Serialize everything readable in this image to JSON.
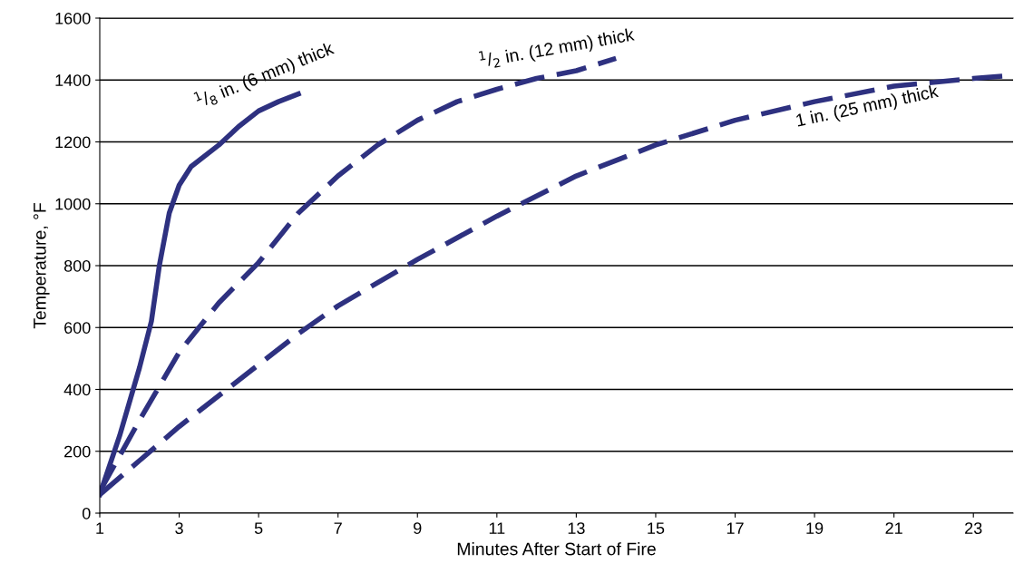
{
  "chart_data": {
    "type": "line",
    "xlabel": "Minutes After Start of Fire",
    "ylabel": "Temperature, °F",
    "xlim": [
      1,
      24
    ],
    "xticks": [
      1,
      3,
      5,
      7,
      9,
      11,
      13,
      15,
      17,
      19,
      21,
      23
    ],
    "ylim": [
      0,
      1600
    ],
    "yticks": [
      0,
      200,
      400,
      600,
      800,
      1000,
      1200,
      1400,
      1600
    ],
    "grid": "y",
    "legend": false,
    "marker": "none",
    "series": [
      {
        "color": "#2e3180",
        "line_style": "solid",
        "x": [
          1,
          1.5,
          2,
          2.3,
          2.5,
          2.75,
          3,
          3.3,
          4,
          4.5,
          5,
          5.5,
          6
        ],
        "values": [
          60,
          250,
          470,
          620,
          800,
          970,
          1060,
          1120,
          1190,
          1250,
          1300,
          1330,
          1355
        ]
      },
      {
        "color": "#2e3180",
        "line_style": "dashed",
        "x": [
          1,
          2,
          3,
          4,
          5,
          6,
          7,
          8,
          9,
          10,
          11,
          12,
          13,
          14
        ],
        "values": [
          70,
          300,
          520,
          680,
          810,
          970,
          1090,
          1190,
          1270,
          1330,
          1370,
          1405,
          1430,
          1470
        ]
      },
      {
        "color": "#2e3180",
        "line_style": "dashed",
        "x": [
          1,
          2,
          3,
          5,
          6,
          7,
          9,
          11,
          13,
          15,
          17,
          19,
          21,
          23,
          24
        ],
        "values": [
          60,
          170,
          280,
          480,
          580,
          670,
          820,
          960,
          1090,
          1190,
          1270,
          1330,
          1380,
          1405,
          1415
        ]
      }
    ],
    "annotations": [
      "$^{1}$/$_{8}$ in. (6 mm) thick",
      "$^{1}$/$_{2}$ in. (12 mm) thick",
      "1 in. (25 mm) thick"
    ]
  }
}
